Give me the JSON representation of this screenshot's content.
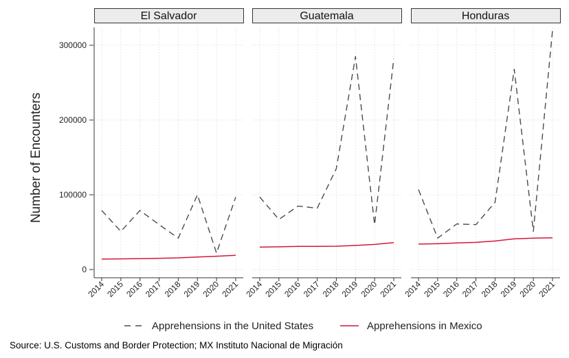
{
  "chart_data": {
    "type": "line",
    "ylabel": "Number of Encounters",
    "ylim": [
      0,
      320000
    ],
    "yticks": [
      0,
      100000,
      200000,
      300000
    ],
    "ytick_labels": [
      "0",
      "100000",
      "200000",
      "300000"
    ],
    "grid": true,
    "legend_position": "bottom",
    "x": [
      "2014",
      "2015",
      "2016",
      "2017",
      "2018",
      "2019",
      "2020",
      "2021"
    ],
    "series_styles": [
      {
        "name": "Apprehensions in the United States",
        "color": "#4a4a4a",
        "dash": "dashed"
      },
      {
        "name": "Apprehensions in Mexico",
        "color": "#d6143c",
        "dash": "solid"
      }
    ],
    "panels": [
      {
        "title": "El Salvador",
        "series": [
          {
            "name": "Apprehensions in the United States",
            "values": [
              79000,
              51000,
              79000,
              60000,
              42000,
              100000,
              22000,
              97000
            ]
          },
          {
            "name": "Apprehensions in Mexico",
            "values": [
              14000,
              14200,
              14600,
              15000,
              15600,
              16800,
              17800,
              19000
            ]
          }
        ]
      },
      {
        "title": "Guatemala",
        "series": [
          {
            "name": "Apprehensions in the United States",
            "values": [
              97000,
              67000,
              85000,
              82000,
              135000,
              285000,
              60000,
              282000
            ]
          },
          {
            "name": "Apprehensions in Mexico",
            "values": [
              30000,
              30400,
              31000,
              31000,
              31200,
              32200,
              33600,
              36000
            ]
          }
        ]
      },
      {
        "title": "Honduras",
        "series": [
          {
            "name": "Apprehensions in the United States",
            "values": [
              107000,
              42000,
              61000,
              60000,
              90000,
              268000,
              51000,
              320000
            ]
          },
          {
            "name": "Apprehensions in Mexico",
            "values": [
              34000,
              34500,
              35500,
              36300,
              38200,
              41000,
              42000,
              42500
            ]
          }
        ]
      }
    ]
  },
  "legend": {
    "us_label": "Apprehensions in the United States",
    "mx_label": "Apprehensions in Mexico"
  },
  "source_text": "Source: U.S. Customs and Border Protection; MX Instituto Nacional de Migración"
}
